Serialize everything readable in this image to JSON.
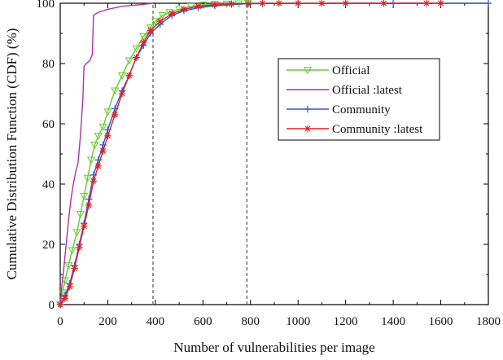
{
  "chart_data": {
    "type": "line",
    "title": "",
    "xlabel": "Number of vulnerabilities per image",
    "ylabel": "Cumulative Distribution Function (CDF) (%)",
    "xlim": [
      0,
      1800
    ],
    "ylim": [
      0,
      100
    ],
    "x_ticks": [
      "0",
      "200",
      "400",
      "600",
      "800",
      "1000",
      "1200",
      "1400",
      "1600",
      "1800"
    ],
    "y_ticks": [
      "0",
      "20",
      "40",
      "60",
      "80",
      "100"
    ],
    "reference_lines_x": [
      390,
      785
    ],
    "grid": false,
    "legend_position": "top-right",
    "series": [
      {
        "name": "Official",
        "color": "#66cc33",
        "marker": "triangle-down",
        "x": [
          0,
          10,
          20,
          35,
          50,
          70,
          85,
          100,
          115,
          130,
          145,
          160,
          180,
          200,
          230,
          260,
          290,
          320,
          350,
          380,
          400,
          430,
          460,
          500,
          550,
          600,
          650,
          700,
          750,
          790
        ],
        "y": [
          0,
          4,
          8,
          13,
          18,
          24,
          30,
          36,
          42,
          48,
          53,
          56,
          59,
          64,
          71,
          76,
          81,
          85,
          89,
          92,
          94,
          96,
          97,
          98,
          99,
          99.5,
          99.7,
          99.8,
          99.9,
          100
        ]
      },
      {
        "name": "Official :latest",
        "color": "#aa33aa",
        "marker": "none",
        "x": [
          0,
          5,
          15,
          25,
          35,
          45,
          55,
          65,
          75,
          85,
          95,
          100,
          110,
          125,
          135,
          140,
          160,
          200,
          260,
          330,
          390
        ],
        "y": [
          0,
          5,
          12,
          20,
          28,
          35,
          40,
          44,
          47,
          56,
          68,
          79,
          80,
          81,
          83,
          96,
          97,
          98,
          99,
          99.5,
          100
        ]
      },
      {
        "name": "Community",
        "color": "#3355cc",
        "marker": "plus",
        "x": [
          0,
          20,
          40,
          60,
          80,
          100,
          120,
          140,
          160,
          180,
          200,
          230,
          260,
          290,
          320,
          350,
          380,
          420,
          470,
          520,
          580,
          650,
          720,
          790,
          850,
          1000,
          1200,
          1400,
          1600,
          1800
        ],
        "y": [
          0,
          3,
          7,
          13,
          20,
          27,
          35,
          43,
          48,
          53,
          58,
          65,
          71,
          76,
          82,
          86,
          90,
          93,
          96,
          97.5,
          98.5,
          99.2,
          99.6,
          99.8,
          99.9,
          99.95,
          100,
          100,
          100,
          100
        ]
      },
      {
        "name": "Community :latest",
        "color": "#dd2222",
        "marker": "asterisk",
        "x": [
          0,
          20,
          40,
          60,
          80,
          100,
          120,
          140,
          160,
          180,
          200,
          230,
          260,
          290,
          320,
          350,
          380,
          420,
          470,
          520,
          580,
          650,
          720,
          790,
          850,
          920,
          1000,
          1100,
          1200,
          1360,
          1540,
          1600
        ],
        "y": [
          0,
          2,
          6,
          12,
          19,
          26,
          33,
          41,
          46,
          51,
          56,
          63,
          70,
          76,
          82,
          87,
          91,
          94,
          96.5,
          98,
          99,
          99.5,
          99.8,
          99.9,
          100,
          100,
          100,
          100,
          100,
          100,
          100,
          100
        ]
      }
    ]
  }
}
